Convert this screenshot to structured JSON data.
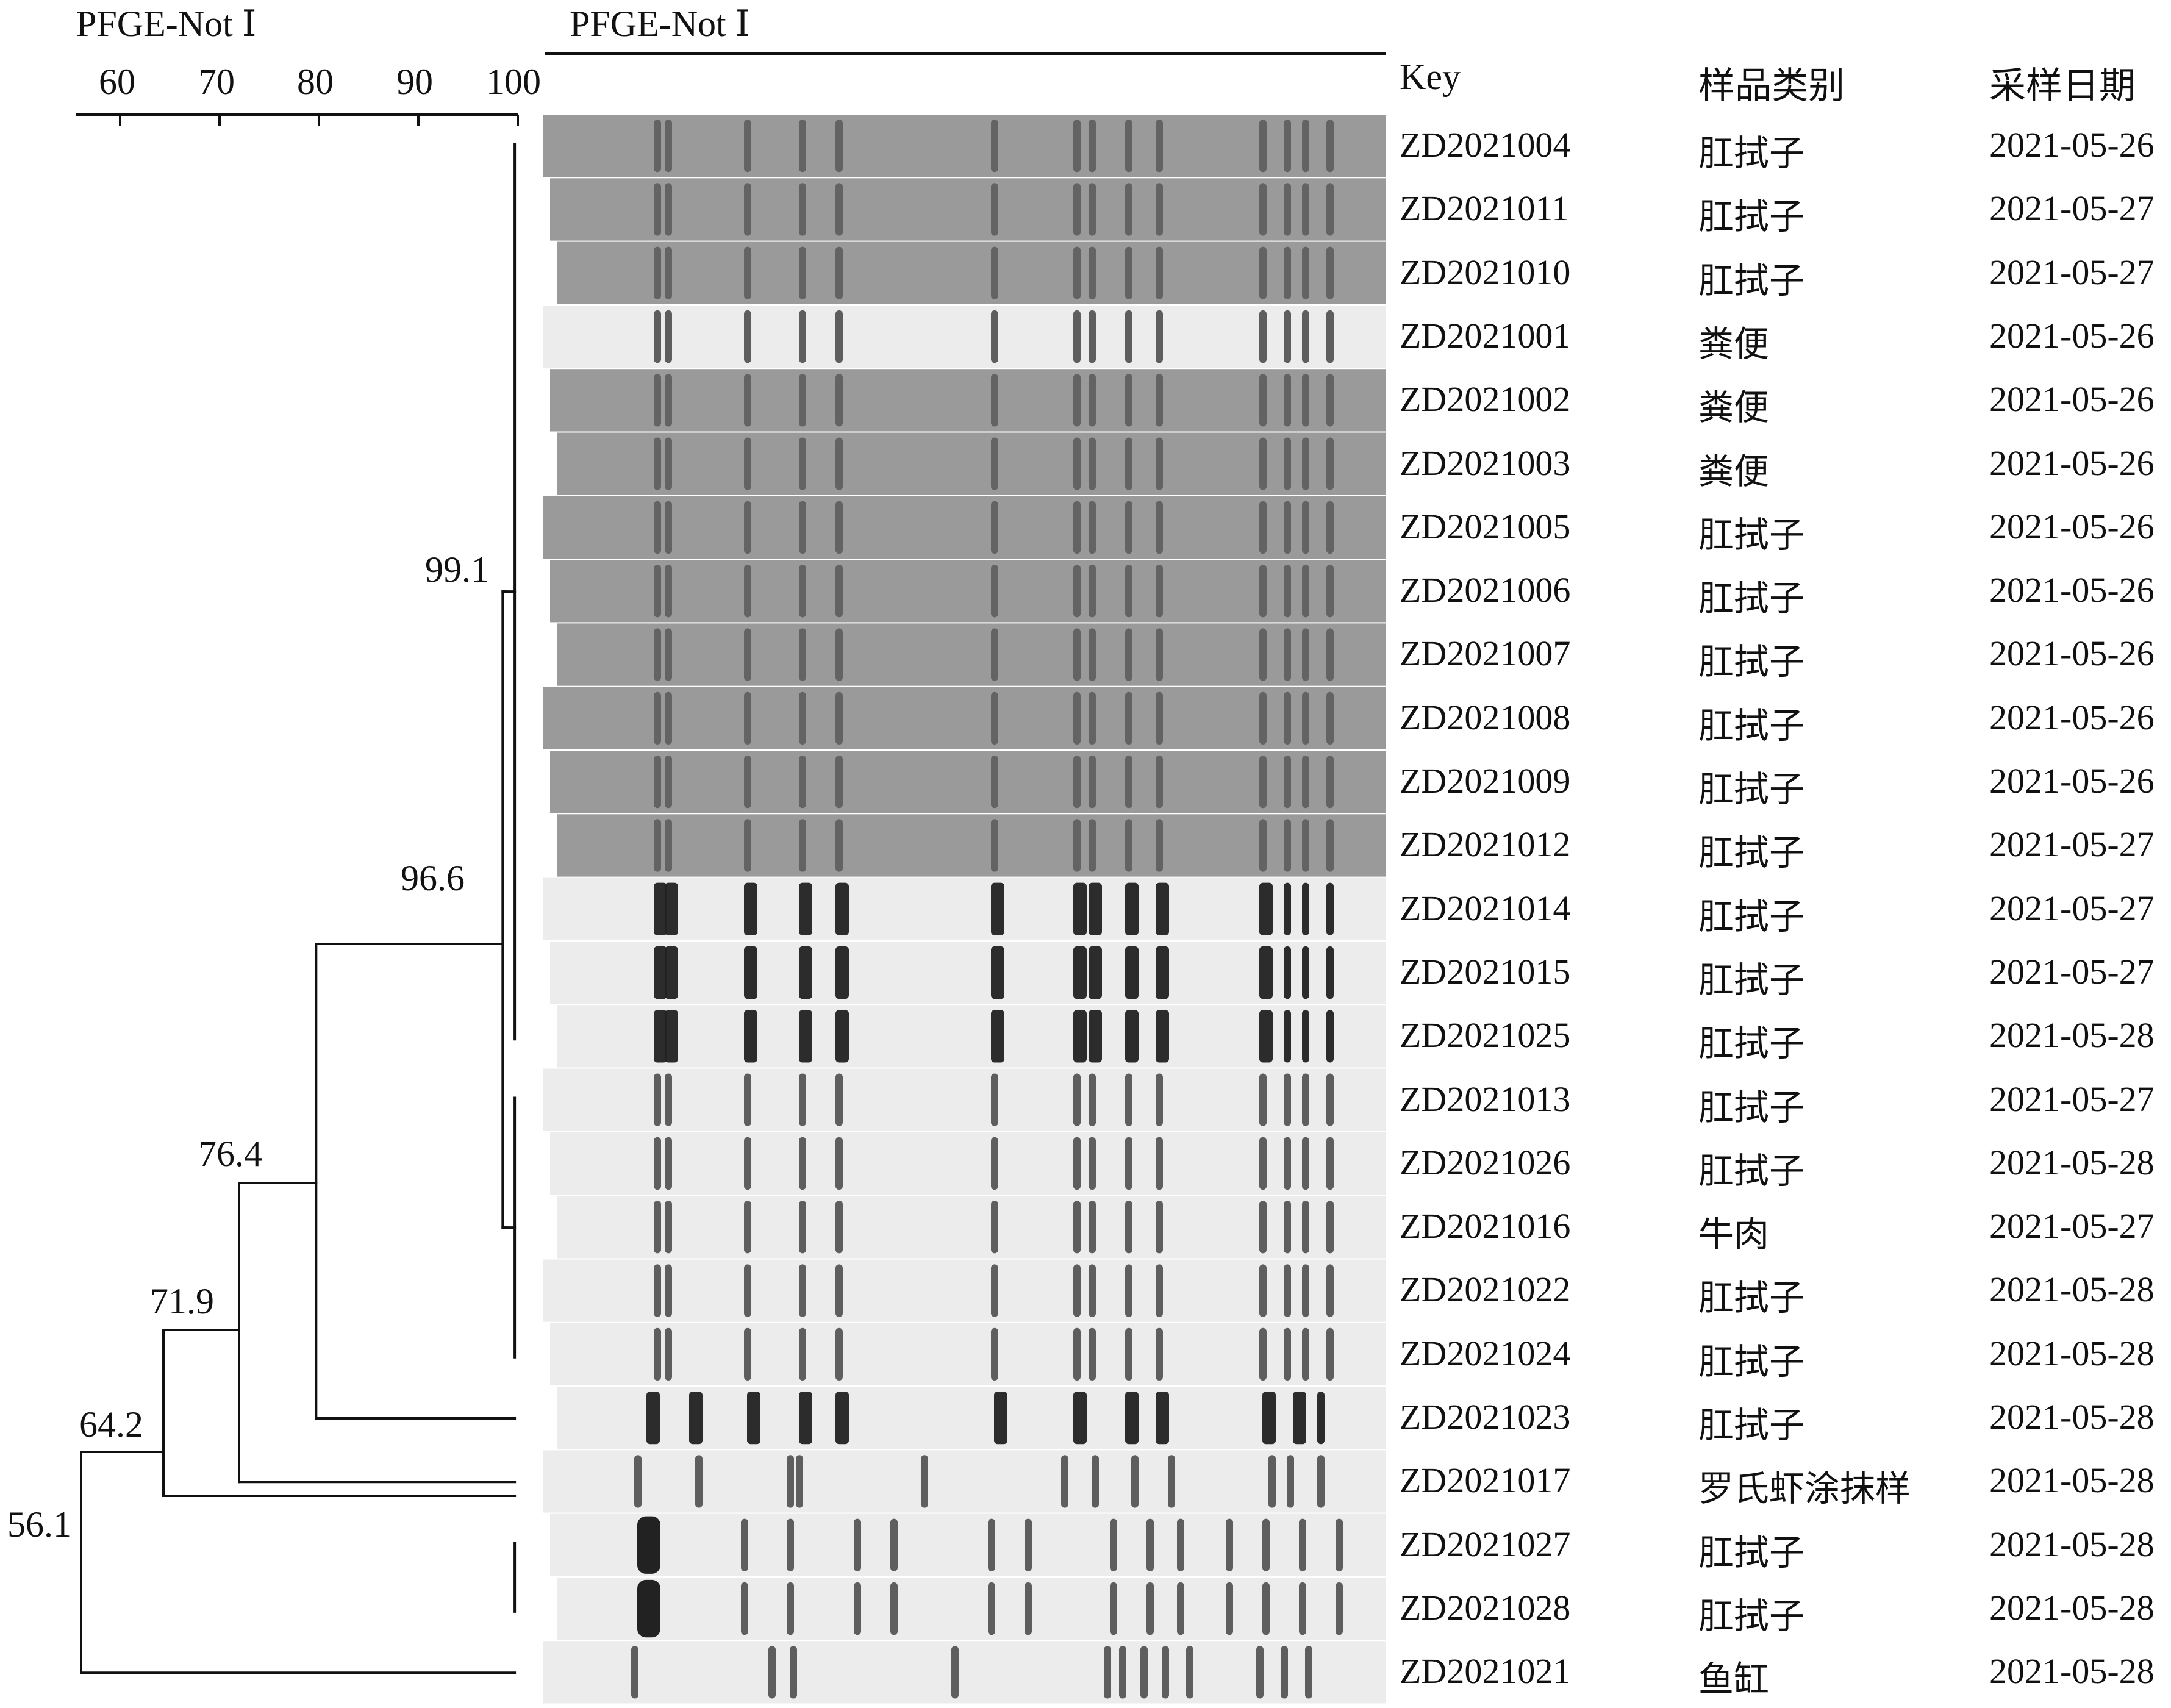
{
  "dendrogram": {
    "title": "PFGE-Not Ⅰ",
    "scale_ticks": [
      "60",
      "70",
      "80",
      "90",
      "100"
    ],
    "node_labels": [
      "99.1",
      "96.6",
      "76.4",
      "71.9",
      "64.2",
      "56.1"
    ]
  },
  "gel": {
    "title": "PFGE-Not Ⅰ"
  },
  "table": {
    "headers": {
      "key": "Key",
      "sample_type": "样品类别",
      "date": "采样日期"
    },
    "rows": [
      {
        "key": "ZD2021004",
        "sample_type": "肛拭子",
        "date": "2021-05-26"
      },
      {
        "key": "ZD2021011",
        "sample_type": "肛拭子",
        "date": "2021-05-27"
      },
      {
        "key": "ZD2021010",
        "sample_type": "肛拭子",
        "date": "2021-05-27"
      },
      {
        "key": "ZD2021001",
        "sample_type": "粪便",
        "date": "2021-05-26"
      },
      {
        "key": "ZD2021002",
        "sample_type": "粪便",
        "date": "2021-05-26"
      },
      {
        "key": "ZD2021003",
        "sample_type": "粪便",
        "date": "2021-05-26"
      },
      {
        "key": "ZD2021005",
        "sample_type": "肛拭子",
        "date": "2021-05-26"
      },
      {
        "key": "ZD2021006",
        "sample_type": "肛拭子",
        "date": "2021-05-26"
      },
      {
        "key": "ZD2021007",
        "sample_type": "肛拭子",
        "date": "2021-05-26"
      },
      {
        "key": "ZD2021008",
        "sample_type": "肛拭子",
        "date": "2021-05-26"
      },
      {
        "key": "ZD2021009",
        "sample_type": "肛拭子",
        "date": "2021-05-26"
      },
      {
        "key": "ZD2021012",
        "sample_type": "肛拭子",
        "date": "2021-05-27"
      },
      {
        "key": "ZD2021014",
        "sample_type": "肛拭子",
        "date": "2021-05-27"
      },
      {
        "key": "ZD2021015",
        "sample_type": "肛拭子",
        "date": "2021-05-27"
      },
      {
        "key": "ZD2021025",
        "sample_type": "肛拭子",
        "date": "2021-05-28"
      },
      {
        "key": "ZD2021013",
        "sample_type": "肛拭子",
        "date": "2021-05-27"
      },
      {
        "key": "ZD2021026",
        "sample_type": "肛拭子",
        "date": "2021-05-28"
      },
      {
        "key": "ZD2021016",
        "sample_type": "牛肉",
        "date": "2021-05-27"
      },
      {
        "key": "ZD2021022",
        "sample_type": "肛拭子",
        "date": "2021-05-28"
      },
      {
        "key": "ZD2021024",
        "sample_type": "肛拭子",
        "date": "2021-05-28"
      },
      {
        "key": "ZD2021023",
        "sample_type": "肛拭子",
        "date": "2021-05-28"
      },
      {
        "key": "ZD2021017",
        "sample_type": "罗氏虾涂抹样",
        "date": "2021-05-28"
      },
      {
        "key": "ZD2021027",
        "sample_type": "肛拭子",
        "date": "2021-05-28"
      },
      {
        "key": "ZD2021028",
        "sample_type": "肛拭子",
        "date": "2021-05-28"
      },
      {
        "key": "ZD2021021",
        "sample_type": "鱼缸",
        "date": "2021-05-28"
      }
    ]
  },
  "colors": {
    "line": "#111111",
    "gel_gray": "#9a9a9a",
    "gel_light": "#ececec",
    "band_dark": "#222222"
  }
}
